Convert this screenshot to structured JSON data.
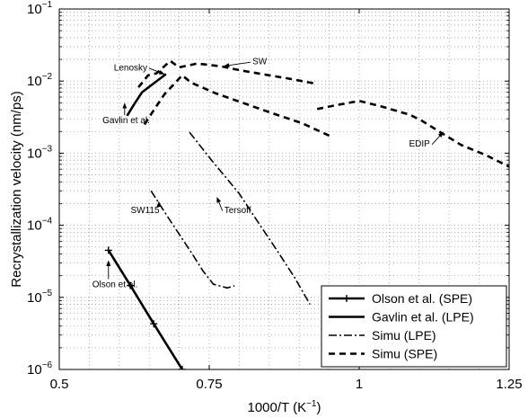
{
  "chart_data": {
    "type": "line",
    "xlabel": "1000/T (K",
    "xlabel_exp": "−1",
    "xlabel_close": ")",
    "ylabel": "Recrystallization velocity (nm/ps)",
    "xlim": [
      0.5,
      1.25
    ],
    "ylim_log10": [
      -6,
      -1
    ],
    "y_scale": "log",
    "grid": "dotted",
    "legend_position": "bottom-right",
    "x_ticks": [
      {
        "value": 0.5,
        "label": "0.5"
      },
      {
        "value": 0.75,
        "label": "0.75"
      },
      {
        "value": 1.0,
        "label": "1"
      },
      {
        "value": 1.25,
        "label": "1.25"
      }
    ],
    "y_ticks": [
      {
        "exp": -6,
        "base": "10",
        "label": "−6"
      },
      {
        "exp": -5,
        "base": "10",
        "label": "−5"
      },
      {
        "exp": -4,
        "base": "10",
        "label": "−4"
      },
      {
        "exp": -3,
        "base": "10",
        "label": "−3"
      },
      {
        "exp": -2,
        "base": "10",
        "label": "−2"
      },
      {
        "exp": -1,
        "base": "10",
        "label": "−1"
      }
    ],
    "series": [
      {
        "name": "Olson et al. (SPE)",
        "style": "solid-marker",
        "points": [
          [
            0.582,
            4.5e-05
          ],
          [
            0.6185,
            1.46e-05
          ],
          [
            0.6575,
            4.3e-06
          ],
          [
            0.705,
            1e-06
          ]
        ]
      },
      {
        "name": "Gavlin et al. (LPE)",
        "style": "solid-thick",
        "points": [
          [
            0.613,
            0.0033
          ],
          [
            0.625,
            0.0048
          ],
          [
            0.638,
            0.007
          ],
          [
            0.678,
            0.0125
          ]
        ]
      },
      {
        "name": "Simu (LPE)",
        "style": "dash-dot",
        "segments": [
          [
            [
              0.653,
              0.0003
            ],
            [
              0.675,
              0.000155
            ],
            [
              0.7,
              7.5e-05
            ],
            [
              0.72,
              4.2e-05
            ],
            [
              0.74,
              2.3e-05
            ],
            [
              0.757,
              1.52e-05
            ],
            [
              0.78,
              1.35e-05
            ],
            [
              0.792,
              1.45e-05
            ]
          ],
          [
            [
              0.717,
              0.00195
            ],
            [
              0.755,
              0.00078
            ],
            [
              0.785,
              0.00039
            ],
            [
              0.8,
              0.000275
            ],
            [
              0.83,
              0.000115
            ],
            [
              0.862,
              4.6e-05
            ],
            [
              0.892,
              1.9e-05
            ],
            [
              0.918,
              8e-06
            ]
          ]
        ]
      },
      {
        "name": "Simu (SPE)",
        "style": "dashed",
        "segments": [
          [
            [
              0.632,
              0.0082
            ],
            [
              0.648,
              0.012
            ],
            [
              0.662,
              0.0128
            ],
            [
              0.685,
              0.019
            ],
            [
              0.7,
              0.0155
            ],
            [
              0.73,
              0.0175
            ],
            [
              0.77,
              0.016
            ],
            [
              0.8,
              0.0142
            ],
            [
              0.85,
              0.012
            ],
            [
              0.878,
              0.011
            ],
            [
              0.928,
              0.0092
            ]
          ],
          [
            [
              0.642,
              0.0025
            ],
            [
              0.658,
              0.004
            ],
            [
              0.675,
              0.0065
            ],
            [
              0.705,
              0.012
            ],
            [
              0.72,
              0.0095
            ],
            [
              0.76,
              0.0068
            ],
            [
              0.8,
              0.0052
            ],
            [
              0.85,
              0.0037
            ],
            [
              0.905,
              0.0026
            ],
            [
              0.95,
              0.00175
            ]
          ],
          [
            [
              0.93,
              0.0041
            ],
            [
              0.96,
              0.0046
            ],
            [
              1.0,
              0.0053
            ],
            [
              1.035,
              0.0045
            ],
            [
              1.085,
              0.0034
            ],
            [
              1.105,
              0.0028
            ],
            [
              1.14,
              0.00185
            ],
            [
              1.17,
              0.0013
            ],
            [
              1.21,
              0.00095
            ],
            [
              1.25,
              0.00065
            ]
          ]
        ]
      }
    ],
    "annotations": [
      {
        "text": "Lenosky",
        "x": 0.591,
        "y": 0.014,
        "ax": 0.675,
        "ay": 0.0125
      },
      {
        "text": "SW",
        "x": 0.822,
        "y": 0.017,
        "ax": 0.775,
        "ay": 0.0162
      },
      {
        "text": "Gavlin et al.",
        "x": 0.572,
        "y": 0.0026,
        "ax": 0.609,
        "ay": 0.0049
      },
      {
        "text": "EDIP",
        "x": 1.083,
        "y": 0.00123,
        "ax": 1.14,
        "ay": 0.00195
      },
      {
        "text": "SW115",
        "x": 0.619,
        "y": 0.000148,
        "ax": 0.666,
        "ay": 0.000212
      },
      {
        "text": "Tersoff",
        "x": 0.775,
        "y": 0.000148,
        "ax": 0.763,
        "ay": 0.000243
      },
      {
        "text": "Olson et al.",
        "x": 0.555,
        "y": 1.38e-05,
        "ax": 0.582,
        "ay": 3.2e-05
      }
    ]
  }
}
